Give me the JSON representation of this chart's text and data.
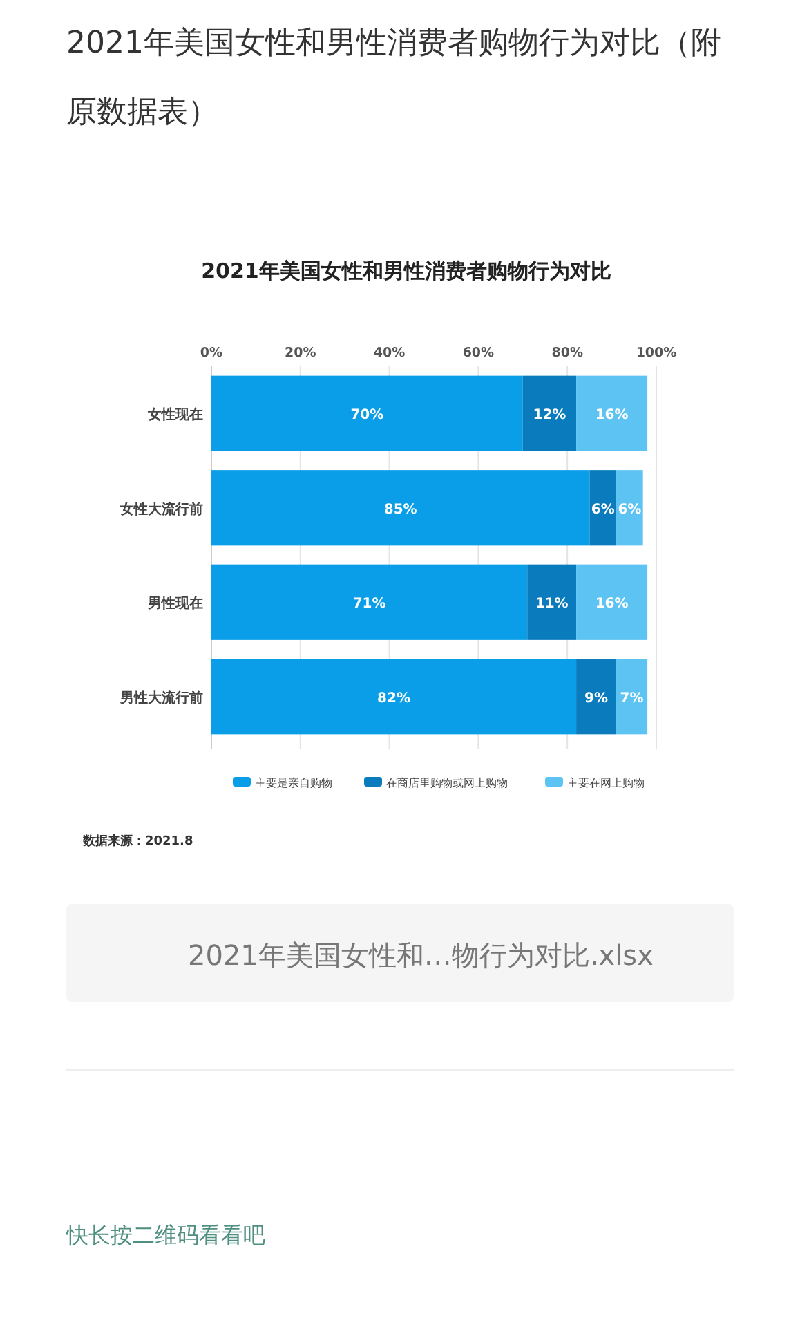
{
  "chart_data": {
    "type": "bar",
    "orientation": "horizontal",
    "stacked": true,
    "title": "2021年美国女性和男性消费者购物行为对比（附原数据表）",
    "subtitle": "2021年美国女性和男性消费者购物行为对比",
    "categories": [
      "女性现在",
      "女性大流行前",
      "男性现在",
      "男性大流行前"
    ],
    "series": [
      {
        "name": "主要是亲自购物",
        "color": "#0a9ee8",
        "values": [
          70,
          85,
          71,
          82
        ]
      },
      {
        "name": "在商店里购物或网上购物",
        "color": "#0a7bbd",
        "values": [
          12,
          6,
          11,
          9
        ]
      },
      {
        "name": "主要在网上购物",
        "color": "#5cc3f3",
        "values": [
          16,
          6,
          16,
          7
        ]
      }
    ],
    "xlim": [
      0,
      100
    ],
    "xticks": [
      {
        "value": 0,
        "label": "0%"
      },
      {
        "value": 20,
        "label": "20%"
      },
      {
        "value": 40,
        "label": "40%"
      },
      {
        "value": 60,
        "label": "60%"
      },
      {
        "value": 80,
        "label": "80%"
      },
      {
        "value": 100,
        "label": "100%"
      }
    ],
    "value_labels": [
      [
        "70%",
        "85%",
        "71%",
        "82%"
      ],
      [
        "12%",
        "6%",
        "11%",
        "9%"
      ],
      [
        "16%",
        "6%",
        "16%",
        "7%"
      ]
    ],
    "grid": "x",
    "legend": "bottom",
    "annotations": [
      "数据来源：2021.8",
      "2021年美国女性和…物行为对比.xlsx",
      "快长按二维码看看吧"
    ]
  }
}
